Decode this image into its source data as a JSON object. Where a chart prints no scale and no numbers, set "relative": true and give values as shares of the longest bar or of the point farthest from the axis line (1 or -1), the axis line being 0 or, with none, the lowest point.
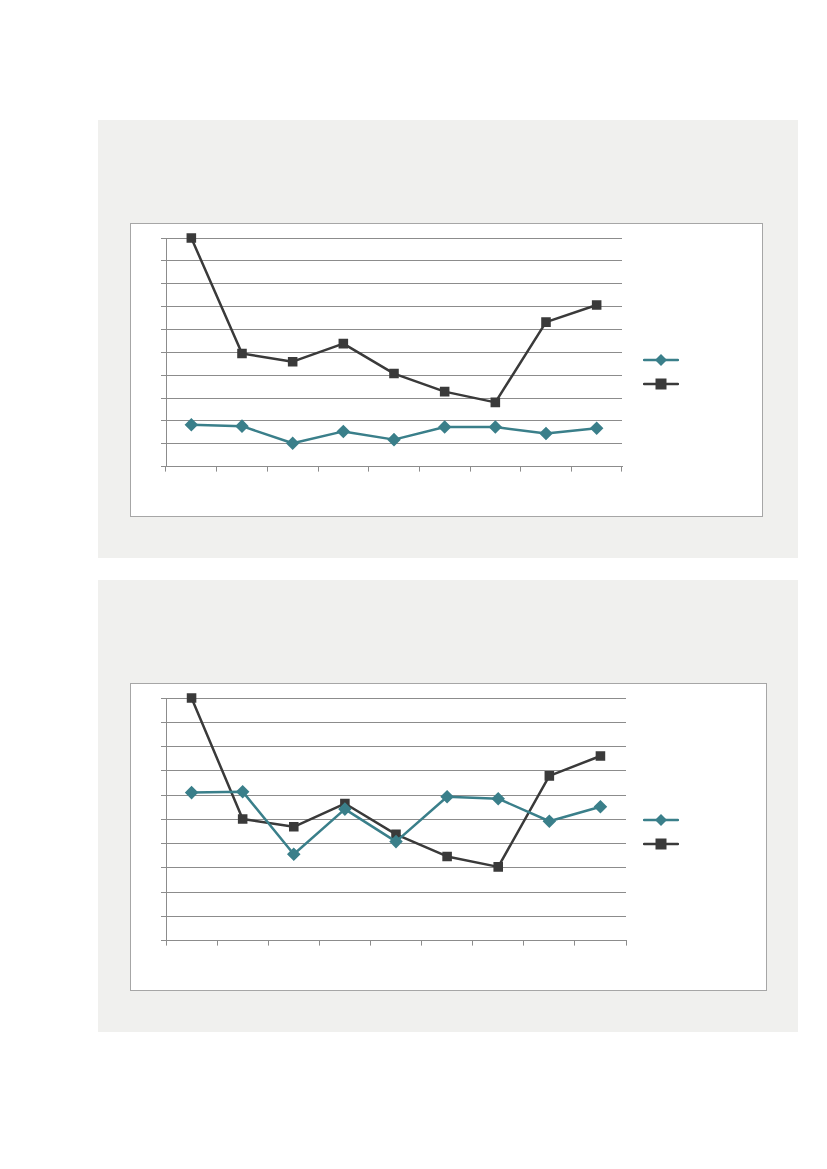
{
  "chart_data": [
    {
      "type": "line",
      "relative": true,
      "grid": "y",
      "categories": [
        null,
        null,
        null,
        null,
        null,
        null,
        null,
        null,
        null
      ],
      "series": [
        {
          "color": "#3a7f8a",
          "marker": "diamond",
          "values": [
            0.183,
            0.177,
            0.102,
            0.154,
            0.118,
            0.173,
            0.173,
            0.145,
            0.168
          ]
        },
        {
          "color": "#3a3a3a",
          "marker": "square",
          "values": [
            1,
            0.495,
            0.459,
            0.538,
            0.407,
            0.328,
            0.281,
            0.632,
            0.707
          ]
        }
      ]
    },
    {
      "type": "line",
      "relative": true,
      "grid": "y",
      "categories": [
        null,
        null,
        null,
        null,
        null,
        null,
        null,
        null,
        null
      ],
      "series": [
        {
          "color": "#3a7f8a",
          "marker": "diamond",
          "values": [
            0.61,
            0.614,
            0.356,
            0.542,
            0.408,
            0.593,
            0.585,
            0.492,
            0.552
          ]
        },
        {
          "color": "#3a3a3a",
          "marker": "square",
          "values": [
            1,
            0.501,
            0.469,
            0.565,
            0.438,
            0.347,
            0.304,
            0.679,
            0.761
          ]
        }
      ]
    }
  ]
}
